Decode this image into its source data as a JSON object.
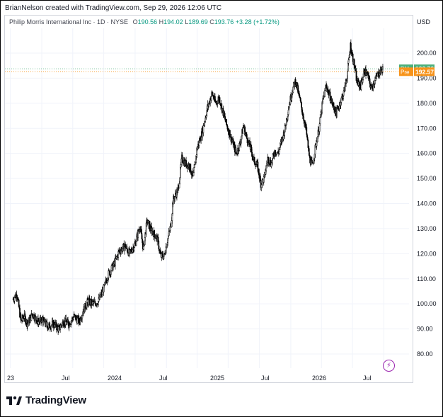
{
  "header": {
    "attribution": "BrianNelson created with TradingView.com, Sep 29, 2026 12:06 UTC"
  },
  "legend": {
    "symbol": "Philip Morris International Inc · 1D · NYSE",
    "o_label": "O",
    "o_value": "190.56",
    "h_label": "H",
    "h_value": "194.02",
    "l_label": "L",
    "l_value": "189.69",
    "c_label": "C",
    "c_value": "193.76",
    "change": "+3.28 (+1.72%)"
  },
  "currency": "USD",
  "footer": {
    "brand": "TradingView",
    "logo_icon": "tradingview-logo-icon"
  },
  "colors": {
    "up": "#089981",
    "down": "#f23645",
    "candle": "#000000",
    "pm_badge": "#4caf7a",
    "pre_badge": "#f7931a",
    "grid": "#f0f3fa"
  },
  "chart_data": {
    "type": "candlestick",
    "title": "Philip Morris International Inc · 1D · NYSE",
    "ylim": [
      75,
      210
    ],
    "y_ticks": [
      "80.00",
      "90.00",
      "100.00",
      "110.00",
      "120.00",
      "130.00",
      "140.00",
      "150.00",
      "160.00",
      "170.00",
      "180.00",
      "190.00",
      "200.00"
    ],
    "x_ticks": [
      "23",
      "Jul",
      "2024",
      "Jul",
      "2025",
      "Jul",
      "2026",
      "Jul"
    ],
    "grid": true,
    "badges": [
      {
        "label": "PM",
        "value": "193.76",
        "price": 193.76,
        "color": "#4caf7a"
      },
      {
        "label": "Pre",
        "value": "192.57",
        "price": 192.57,
        "color": "#f7931a"
      }
    ],
    "price_path": [
      [
        "2023-10-09",
        102
      ],
      [
        "2023-10-20",
        104
      ],
      [
        "2023-11-01",
        93
      ],
      [
        "2023-11-10",
        95
      ],
      [
        "2023-11-20",
        92
      ],
      [
        "2023-12-05",
        96
      ],
      [
        "2023-12-20",
        93
      ],
      [
        "2024-01-05",
        93
      ],
      [
        "2024-01-20",
        91
      ],
      [
        "2024-02-05",
        92
      ],
      [
        "2024-02-20",
        90
      ],
      [
        "2024-03-05",
        93
      ],
      [
        "2024-03-20",
        92
      ],
      [
        "2024-04-05",
        95
      ],
      [
        "2024-04-20",
        93
      ],
      [
        "2024-05-01",
        97
      ],
      [
        "2024-05-15",
        101
      ],
      [
        "2024-06-01",
        100
      ],
      [
        "2024-06-15",
        101
      ],
      [
        "2024-07-01",
        106
      ],
      [
        "2024-07-15",
        112
      ],
      [
        "2024-08-01",
        116
      ],
      [
        "2024-08-15",
        121
      ],
      [
        "2024-09-01",
        123
      ],
      [
        "2024-09-15",
        120
      ],
      [
        "2024-10-01",
        124
      ],
      [
        "2024-10-15",
        131
      ],
      [
        "2024-10-25",
        122
      ],
      [
        "2024-11-05",
        133
      ],
      [
        "2024-11-15",
        130
      ],
      [
        "2024-11-25",
        128
      ],
      [
        "2024-12-05",
        126
      ],
      [
        "2024-12-15",
        119
      ],
      [
        "2024-12-25",
        119
      ],
      [
        "2025-01-05",
        126
      ],
      [
        "2025-01-15",
        132
      ],
      [
        "2025-01-20",
        141
      ],
      [
        "2025-02-05",
        146
      ],
      [
        "2025-02-15",
        158
      ],
      [
        "2025-02-25",
        156
      ],
      [
        "2025-03-10",
        155
      ],
      [
        "2025-03-20",
        150
      ],
      [
        "2025-04-01",
        162
      ],
      [
        "2025-04-15",
        168
      ],
      [
        "2025-05-01",
        178
      ],
      [
        "2025-05-15",
        184
      ],
      [
        "2025-05-25",
        180
      ],
      [
        "2025-06-05",
        182
      ],
      [
        "2025-06-15",
        177
      ],
      [
        "2025-06-25",
        172
      ],
      [
        "2025-07-05",
        168
      ],
      [
        "2025-07-15",
        164
      ],
      [
        "2025-07-25",
        160
      ],
      [
        "2025-08-05",
        164
      ],
      [
        "2025-08-15",
        171
      ],
      [
        "2025-08-25",
        166
      ],
      [
        "2025-09-05",
        162
      ],
      [
        "2025-09-15",
        157
      ],
      [
        "2025-09-25",
        155
      ],
      [
        "2025-10-05",
        148
      ],
      [
        "2025-10-15",
        150
      ],
      [
        "2025-10-25",
        158
      ],
      [
        "2025-11-05",
        156
      ],
      [
        "2025-11-15",
        161
      ],
      [
        "2025-11-25",
        160
      ],
      [
        "2025-12-05",
        165
      ],
      [
        "2025-12-15",
        170
      ],
      [
        "2025-12-25",
        178
      ],
      [
        "2026-01-05",
        185
      ],
      [
        "2026-01-15",
        189
      ],
      [
        "2026-01-25",
        183
      ],
      [
        "2026-02-05",
        176
      ],
      [
        "2026-02-15",
        169
      ],
      [
        "2026-02-25",
        158
      ],
      [
        "2026-03-05",
        155
      ],
      [
        "2026-03-15",
        163
      ],
      [
        "2026-03-25",
        170
      ],
      [
        "2026-04-05",
        181
      ],
      [
        "2026-04-15",
        187
      ],
      [
        "2026-04-25",
        183
      ],
      [
        "2026-05-05",
        179
      ],
      [
        "2026-05-15",
        176
      ],
      [
        "2026-05-25",
        180
      ],
      [
        "2026-06-05",
        184
      ],
      [
        "2026-06-15",
        191
      ],
      [
        "2026-06-25",
        203
      ],
      [
        "2026-07-05",
        196
      ],
      [
        "2026-07-15",
        188
      ],
      [
        "2026-07-25",
        187
      ],
      [
        "2026-08-05",
        193
      ],
      [
        "2026-08-15",
        191
      ],
      [
        "2026-08-25",
        186
      ],
      [
        "2026-09-05",
        189
      ],
      [
        "2026-09-15",
        192
      ],
      [
        "2026-09-29",
        193.76
      ]
    ]
  }
}
